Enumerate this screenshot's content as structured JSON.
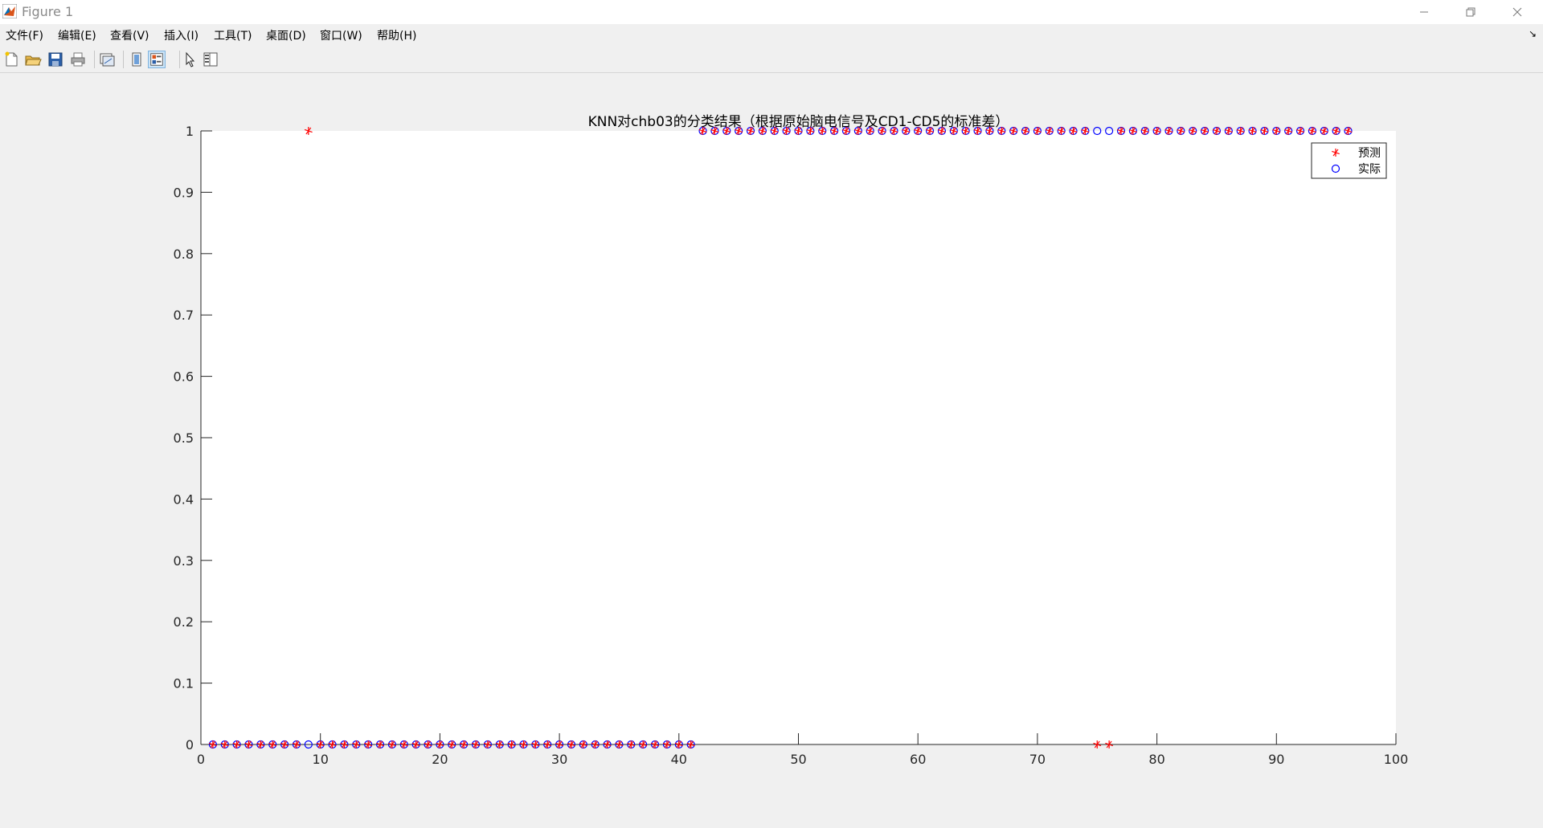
{
  "window": {
    "title": "Figure 1",
    "minimize_icon": "minimize-icon",
    "restore_icon": "restore-icon",
    "close_icon": "close-icon"
  },
  "menu": {
    "items": [
      "文件(F)",
      "编辑(E)",
      "查看(V)",
      "插入(I)",
      "工具(T)",
      "桌面(D)",
      "窗口(W)",
      "帮助(H)"
    ],
    "overflow_icon": "dock-arrow-icon"
  },
  "toolbar": {
    "tools": [
      "new-figure-icon",
      "open-file-icon",
      "save-icon",
      "print-icon",
      "link-plot-icon",
      "hide-plot-tools-icon",
      "show-plot-tools-icon",
      "edit-plot-icon",
      "open-property-inspector-icon"
    ]
  },
  "colors": {
    "predicted": "#ff0000",
    "actual": "#0000ff",
    "axes_bg": "#ffffff",
    "figure_bg": "#f0f0f0"
  },
  "chart_data": {
    "type": "scatter",
    "title": "KNN对chb03的分类结果（根据原始脑电信号及CD1-CD5的标准差）",
    "xlabel": "",
    "ylabel": "",
    "xlim": [
      0,
      100
    ],
    "ylim": [
      0,
      1
    ],
    "xticks": [
      0,
      10,
      20,
      30,
      40,
      50,
      60,
      70,
      80,
      90,
      100
    ],
    "yticks": [
      0,
      0.1,
      0.2,
      0.3,
      0.4,
      0.5,
      0.6,
      0.7,
      0.8,
      0.9,
      1
    ],
    "grid": false,
    "legend_position": "top-right",
    "series": [
      {
        "name": "预测",
        "marker": "asterisk",
        "x": [
          1,
          2,
          3,
          4,
          5,
          6,
          7,
          8,
          9,
          10,
          11,
          12,
          13,
          14,
          15,
          16,
          17,
          18,
          19,
          20,
          21,
          22,
          23,
          24,
          25,
          26,
          27,
          28,
          29,
          30,
          31,
          32,
          33,
          34,
          35,
          36,
          37,
          38,
          39,
          40,
          41,
          42,
          43,
          44,
          45,
          46,
          47,
          48,
          49,
          50,
          51,
          52,
          53,
          54,
          55,
          56,
          57,
          58,
          59,
          60,
          61,
          62,
          63,
          64,
          65,
          66,
          67,
          68,
          69,
          70,
          71,
          72,
          73,
          74,
          75,
          76,
          77,
          78,
          79,
          80,
          81,
          82,
          83,
          84,
          85,
          86,
          87,
          88,
          89,
          90,
          91,
          92,
          93,
          94,
          95,
          96
        ],
        "y": [
          0,
          0,
          0,
          0,
          0,
          0,
          0,
          0,
          1,
          0,
          0,
          0,
          0,
          0,
          0,
          0,
          0,
          0,
          0,
          0,
          0,
          0,
          0,
          0,
          0,
          0,
          0,
          0,
          0,
          0,
          0,
          0,
          0,
          0,
          0,
          0,
          0,
          0,
          0,
          0,
          0,
          1,
          1,
          1,
          1,
          1,
          1,
          1,
          1,
          1,
          1,
          1,
          1,
          1,
          1,
          1,
          1,
          1,
          1,
          1,
          1,
          1,
          1,
          1,
          1,
          1,
          1,
          1,
          1,
          1,
          1,
          1,
          1,
          1,
          0,
          0,
          1,
          1,
          1,
          1,
          1,
          1,
          1,
          1,
          1,
          1,
          1,
          1,
          1,
          1,
          1,
          1,
          1,
          1,
          1,
          1
        ]
      },
      {
        "name": "实际",
        "marker": "circle",
        "x": [
          1,
          2,
          3,
          4,
          5,
          6,
          7,
          8,
          9,
          10,
          11,
          12,
          13,
          14,
          15,
          16,
          17,
          18,
          19,
          20,
          21,
          22,
          23,
          24,
          25,
          26,
          27,
          28,
          29,
          30,
          31,
          32,
          33,
          34,
          35,
          36,
          37,
          38,
          39,
          40,
          41,
          42,
          43,
          44,
          45,
          46,
          47,
          48,
          49,
          50,
          51,
          52,
          53,
          54,
          55,
          56,
          57,
          58,
          59,
          60,
          61,
          62,
          63,
          64,
          65,
          66,
          67,
          68,
          69,
          70,
          71,
          72,
          73,
          74,
          75,
          76,
          77,
          78,
          79,
          80,
          81,
          82,
          83,
          84,
          85,
          86,
          87,
          88,
          89,
          90,
          91,
          92,
          93,
          94,
          95,
          96
        ],
        "y": [
          0,
          0,
          0,
          0,
          0,
          0,
          0,
          0,
          0,
          0,
          0,
          0,
          0,
          0,
          0,
          0,
          0,
          0,
          0,
          0,
          0,
          0,
          0,
          0,
          0,
          0,
          0,
          0,
          0,
          0,
          0,
          0,
          0,
          0,
          0,
          0,
          0,
          0,
          0,
          0,
          0,
          1,
          1,
          1,
          1,
          1,
          1,
          1,
          1,
          1,
          1,
          1,
          1,
          1,
          1,
          1,
          1,
          1,
          1,
          1,
          1,
          1,
          1,
          1,
          1,
          1,
          1,
          1,
          1,
          1,
          1,
          1,
          1,
          1,
          1,
          1,
          1,
          1,
          1,
          1,
          1,
          1,
          1,
          1,
          1,
          1,
          1,
          1,
          1,
          1,
          1,
          1,
          1,
          1,
          1,
          1
        ]
      }
    ]
  }
}
